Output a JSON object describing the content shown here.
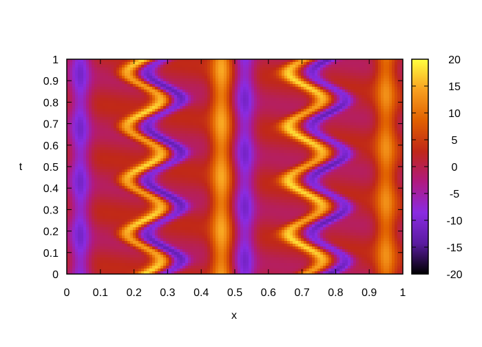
{
  "chart_data": {
    "type": "heatmap",
    "title": "",
    "xlabel": "x",
    "ylabel": "t",
    "xlim": [
      0,
      1
    ],
    "ylim": [
      0,
      1
    ],
    "x_ticks": [
      "0",
      "0.1",
      "0.2",
      "0.3",
      "0.4",
      "0.5",
      "0.6",
      "0.7",
      "0.8",
      "0.9",
      "1"
    ],
    "y_ticks": [
      "0",
      "0.1",
      "0.2",
      "0.3",
      "0.4",
      "0.5",
      "0.6",
      "0.7",
      "0.8",
      "0.9",
      "1"
    ],
    "colorbar": {
      "range": [
        -20,
        20
      ],
      "ticks": [
        "20",
        "15",
        "10",
        "5",
        "0",
        "-5",
        "-10",
        "-15",
        "-20"
      ],
      "palette": [
        "#000000",
        "#5a1ba0",
        "#8a2be2",
        "#b01a80",
        "#c02818",
        "#e06000",
        "#f8a020",
        "#ffff40"
      ]
    },
    "field": {
      "description_values": "approximate field u(x,t)",
      "period_t": 0.25,
      "features": [
        {
          "kind": "wavy_crest",
          "x_center": 0.23,
          "amplitude": 0.05,
          "value": 15
        },
        {
          "kind": "wavy_trough",
          "x_center": 0.29,
          "amplitude": 0.05,
          "value": -12
        },
        {
          "kind": "straight_crest",
          "x_center": 0.46,
          "value": 12
        },
        {
          "kind": "straight_trough",
          "x_center": 0.53,
          "value": -10
        },
        {
          "kind": "wavy_crest",
          "x_center": 0.71,
          "amplitude": 0.05,
          "value": 15
        },
        {
          "kind": "wavy_trough",
          "x_center": 0.78,
          "amplitude": 0.05,
          "value": -12
        },
        {
          "kind": "straight_trough",
          "x_center": 0.04,
          "value": -10
        },
        {
          "kind": "straight_crest",
          "x_center": 0.95,
          "value": 10
        }
      ]
    }
  }
}
